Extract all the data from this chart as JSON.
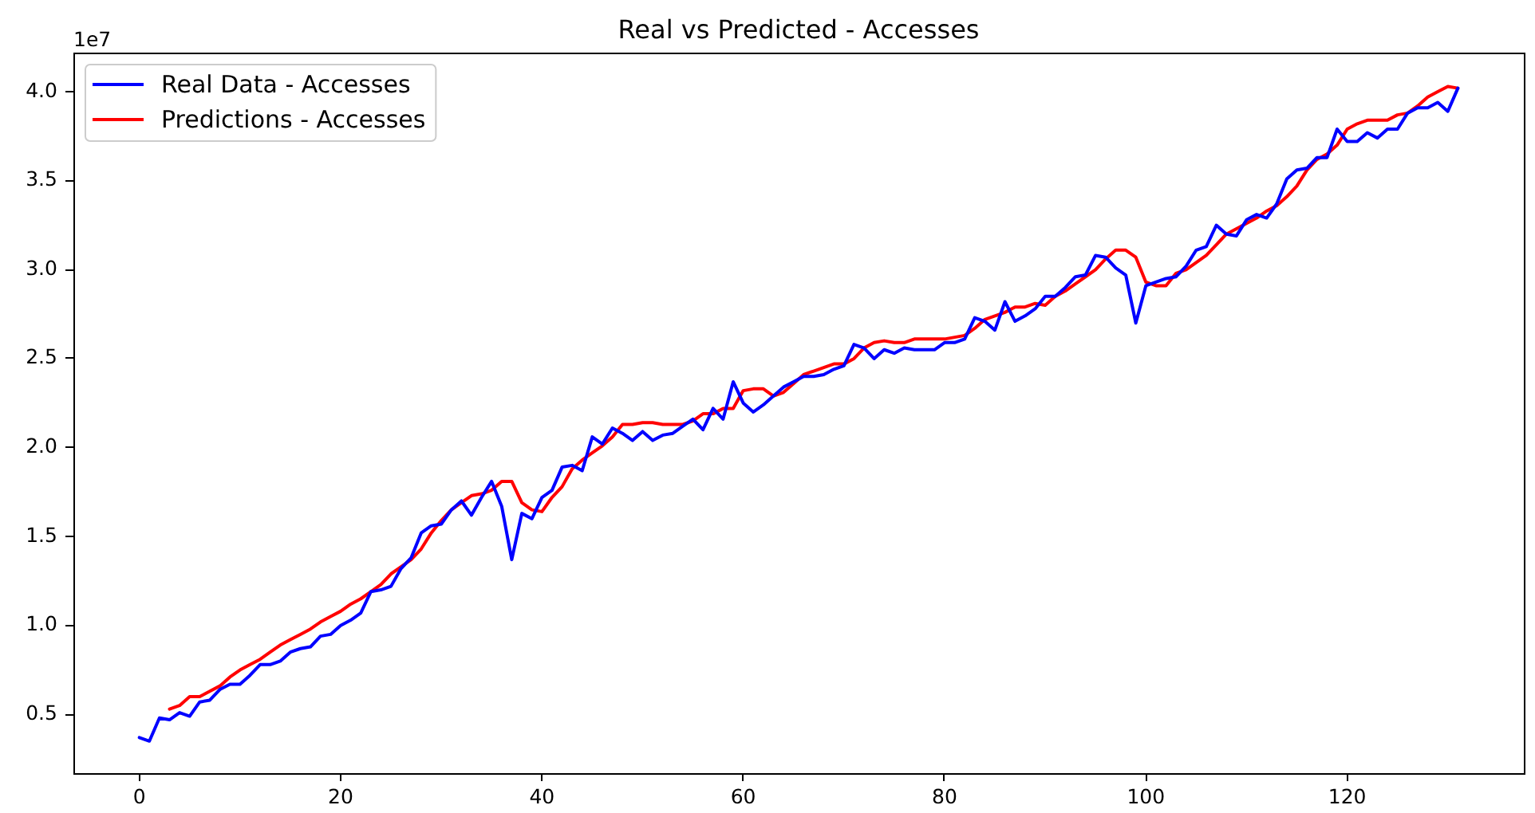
{
  "chart_data": {
    "type": "line",
    "title": "Real vs Predicted - Accesses",
    "annotations": [
      "1e7"
    ],
    "x": [
      0,
      1,
      2,
      3,
      4,
      5,
      6,
      7,
      8,
      9,
      10,
      11,
      12,
      13,
      14,
      15,
      16,
      17,
      18,
      19,
      20,
      21,
      22,
      23,
      24,
      25,
      26,
      27,
      28,
      29,
      30,
      31,
      32,
      33,
      34,
      35,
      36,
      37,
      38,
      39,
      40,
      41,
      42,
      43,
      44,
      45,
      46,
      47,
      48,
      49,
      50,
      51,
      52,
      53,
      54,
      55,
      56,
      57,
      58,
      59,
      60,
      61,
      62,
      63,
      64,
      65,
      66,
      67,
      68,
      69,
      70,
      71,
      72,
      73,
      74,
      75,
      76,
      77,
      78,
      79,
      80,
      81,
      82,
      83,
      84,
      85,
      86,
      87,
      88,
      89,
      90,
      91,
      92,
      93,
      94,
      95,
      96,
      97,
      98,
      99,
      100,
      101,
      102,
      103,
      104,
      105,
      106,
      107,
      108,
      109,
      110,
      111,
      112,
      113,
      114,
      115,
      116,
      117,
      118,
      119,
      120,
      121,
      122,
      123,
      124,
      125,
      126,
      127,
      128,
      129,
      130,
      131
    ],
    "series": [
      {
        "name": "Real Data - Accesses",
        "color": "#0000ff",
        "values": [
          0.37,
          0.35,
          0.48,
          0.47,
          0.51,
          0.49,
          0.57,
          0.58,
          0.64,
          0.67,
          0.67,
          0.72,
          0.78,
          0.78,
          0.8,
          0.85,
          0.87,
          0.88,
          0.94,
          0.95,
          1.0,
          1.03,
          1.07,
          1.19,
          1.2,
          1.22,
          1.32,
          1.38,
          1.52,
          1.56,
          1.57,
          1.65,
          1.7,
          1.62,
          1.72,
          1.81,
          1.67,
          1.37,
          1.63,
          1.6,
          1.72,
          1.76,
          1.89,
          1.9,
          1.87,
          2.06,
          2.02,
          2.11,
          2.08,
          2.04,
          2.09,
          2.04,
          2.07,
          2.08,
          2.12,
          2.16,
          2.1,
          2.22,
          2.16,
          2.37,
          2.25,
          2.2,
          2.24,
          2.29,
          2.34,
          2.37,
          2.4,
          2.4,
          2.41,
          2.44,
          2.46,
          2.58,
          2.56,
          2.5,
          2.55,
          2.53,
          2.56,
          2.55,
          2.55,
          2.55,
          2.59,
          2.59,
          2.61,
          2.73,
          2.71,
          2.66,
          2.82,
          2.71,
          2.74,
          2.78,
          2.85,
          2.85,
          2.9,
          2.96,
          2.97,
          3.08,
          3.07,
          3.01,
          2.97,
          2.7,
          2.91,
          2.93,
          2.95,
          2.96,
          3.02,
          3.11,
          3.13,
          3.25,
          3.2,
          3.19,
          3.28,
          3.31,
          3.29,
          3.37,
          3.51,
          3.56,
          3.57,
          3.63,
          3.63,
          3.79,
          3.72,
          3.72,
          3.77,
          3.74,
          3.79,
          3.79,
          3.88,
          3.91,
          3.91,
          3.94,
          3.89,
          4.02
        ]
      },
      {
        "name": "Predictions - Accesses",
        "color": "#ff0000",
        "values": [
          null,
          null,
          null,
          0.53,
          0.55,
          0.6,
          0.6,
          0.63,
          0.66,
          0.71,
          0.75,
          0.78,
          0.81,
          0.85,
          0.89,
          0.92,
          0.95,
          0.98,
          1.02,
          1.05,
          1.08,
          1.12,
          1.15,
          1.19,
          1.23,
          1.29,
          1.33,
          1.37,
          1.43,
          1.52,
          1.59,
          1.65,
          1.69,
          1.73,
          1.74,
          1.76,
          1.81,
          1.81,
          1.69,
          1.65,
          1.64,
          1.72,
          1.78,
          1.88,
          1.93,
          1.97,
          2.01,
          2.06,
          2.13,
          2.13,
          2.14,
          2.14,
          2.13,
          2.13,
          2.13,
          2.15,
          2.19,
          2.19,
          2.22,
          2.22,
          2.32,
          2.33,
          2.33,
          2.29,
          2.31,
          2.36,
          2.41,
          2.43,
          2.45,
          2.47,
          2.47,
          2.5,
          2.56,
          2.59,
          2.6,
          2.59,
          2.59,
          2.61,
          2.61,
          2.61,
          2.61,
          2.62,
          2.63,
          2.67,
          2.72,
          2.74,
          2.76,
          2.79,
          2.79,
          2.81,
          2.8,
          2.85,
          2.88,
          2.92,
          2.96,
          3.0,
          3.06,
          3.11,
          3.11,
          3.07,
          2.93,
          2.91,
          2.91,
          2.98,
          3.0,
          3.04,
          3.08,
          3.14,
          3.2,
          3.23,
          3.26,
          3.29,
          3.33,
          3.36,
          3.41,
          3.47,
          3.56,
          3.62,
          3.65,
          3.7,
          3.79,
          3.82,
          3.84,
          3.84,
          3.84,
          3.87,
          3.88,
          3.92,
          3.97,
          4.0,
          4.03,
          4.02
        ]
      }
    ],
    "xlim": [
      -6.55,
      137.55
    ],
    "xticks": [
      0,
      20,
      40,
      60,
      80,
      100,
      120
    ],
    "ylim": [
      0.17,
      4.22
    ],
    "yticks": [
      0.5,
      {
        "value": 1,
        "label": "1.0"
      },
      1.5,
      {
        "value": 2,
        "label": "2.0"
      },
      2.5,
      {
        "value": 3,
        "label": "3.0"
      },
      3.5,
      {
        "value": 4,
        "label": "4.0"
      }
    ],
    "legend": "top left"
  }
}
